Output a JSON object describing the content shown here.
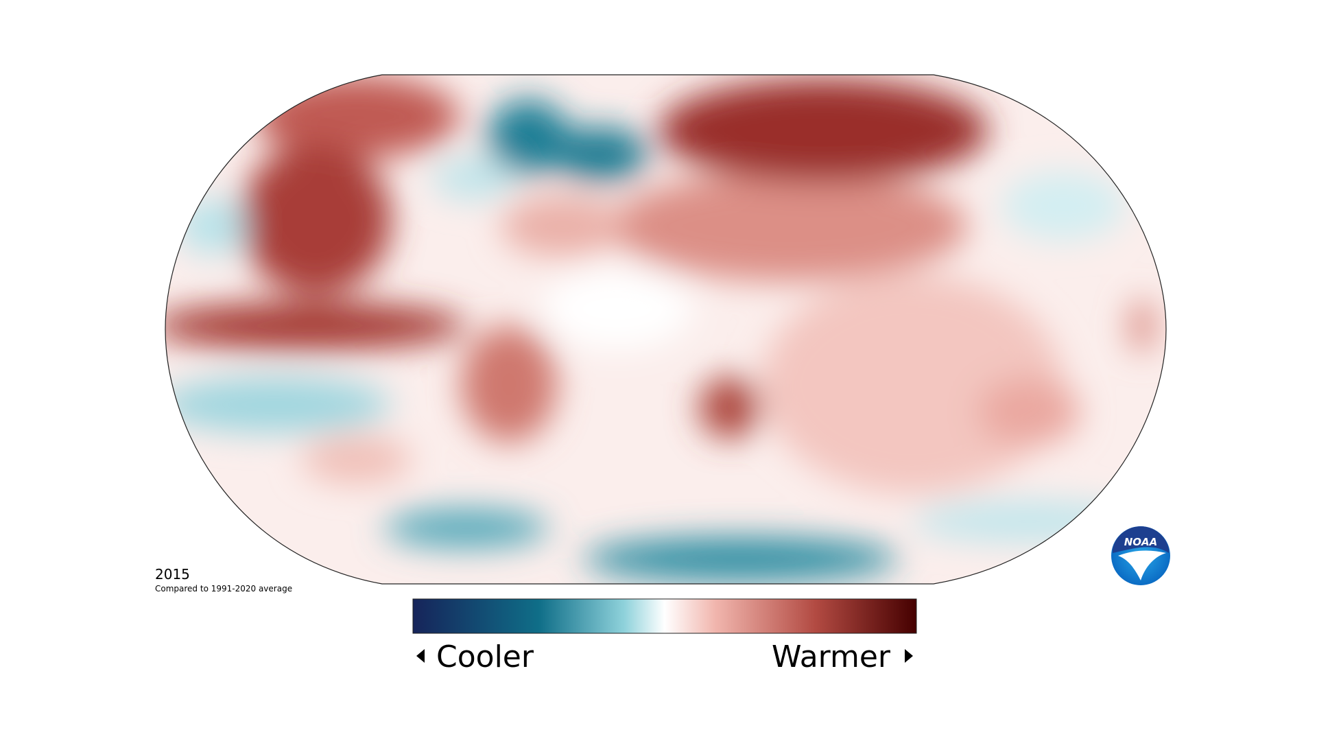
{
  "map": {
    "year": "2015",
    "caption": "Compared to 1991-2020 average",
    "legend": {
      "low": "Cooler",
      "high": "Warmer"
    },
    "logo": "NOAA"
  }
}
